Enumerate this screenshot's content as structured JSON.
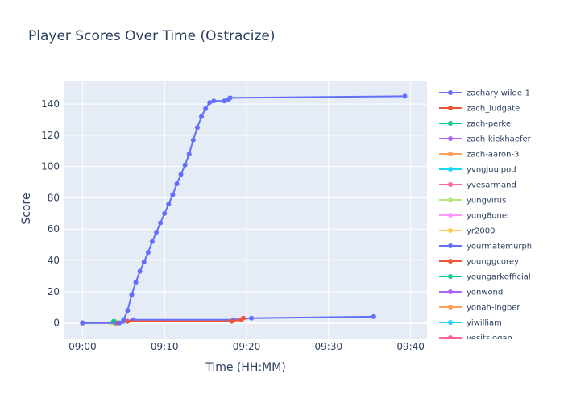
{
  "chart_data": {
    "type": "line",
    "title": "Player Scores Over Time (Ostracize)",
    "xlabel": "Time (HH:MM)",
    "ylabel": "Score",
    "x_tick_labels": [
      "09:00",
      "09:10",
      "09:20",
      "09:30",
      "09:40"
    ],
    "x_tick_minutes": [
      0,
      10,
      20,
      30,
      40
    ],
    "xlim_minutes": [
      -2.2,
      42
    ],
    "y_ticks": [
      0,
      20,
      40,
      60,
      80,
      100,
      120,
      140
    ],
    "ylim": [
      -10,
      155
    ],
    "grid": true,
    "legend_position": "right",
    "plot_background": "#e5ecf6",
    "series": [
      {
        "name": "zachary-wilde-1",
        "color": "#636efa",
        "x": [
          0,
          4.5,
          5.0,
          5.5,
          6.0,
          6.5,
          7.0,
          7.5,
          8.0,
          8.5,
          9.0,
          9.5,
          10.0,
          10.5,
          11.0,
          11.5,
          12.0,
          12.5,
          13.0,
          13.5,
          14.0,
          14.5,
          15.0,
          15.5,
          16.0,
          17.3,
          17.8,
          18.0,
          39.3
        ],
        "y": [
          0,
          0,
          2,
          8,
          18,
          26,
          33,
          39,
          45,
          52,
          58,
          64,
          70,
          76,
          82,
          89,
          95,
          101,
          108,
          117,
          125,
          132,
          137,
          141,
          142,
          142,
          143,
          144,
          145
        ]
      },
      {
        "name": "zach_ludgate",
        "color": "#ef553b",
        "x": [
          4.2,
          5.5,
          18.2,
          19.3,
          19.6
        ],
        "y": [
          0,
          1,
          1,
          2,
          3
        ]
      },
      {
        "name": "zach-perkel",
        "color": "#00cc96",
        "x": [
          3.8,
          4.0
        ],
        "y": [
          1,
          0
        ]
      },
      {
        "name": "zach-kiekhaefer",
        "color": "#ab63fa",
        "x": [
          0,
          4.0
        ],
        "y": [
          0,
          0
        ]
      },
      {
        "name": "zach-aaron-3",
        "color": "#ffa15a",
        "x": [
          0,
          4.0
        ],
        "y": [
          0,
          0
        ]
      },
      {
        "name": "yvngjuulpod",
        "color": "#19d3f3",
        "x": [
          0,
          4.0
        ],
        "y": [
          0,
          0
        ]
      },
      {
        "name": "yvesarmand",
        "color": "#ff6692",
        "x": [
          0,
          4.0
        ],
        "y": [
          0,
          0
        ]
      },
      {
        "name": "yungvirus",
        "color": "#b6e880",
        "x": [
          0,
          3.5,
          4.0
        ],
        "y": [
          0,
          0,
          1
        ]
      },
      {
        "name": "yung8oner",
        "color": "#ff97ff",
        "x": [
          0,
          4.0
        ],
        "y": [
          0,
          0
        ]
      },
      {
        "name": "yr2000",
        "color": "#fecb52",
        "x": [
          0,
          4.0
        ],
        "y": [
          0,
          0
        ]
      },
      {
        "name": "yourmatemurph",
        "color": "#636efa",
        "x": [
          4.2,
          5.0,
          6.2,
          18.4,
          20.6,
          35.5
        ],
        "y": [
          0,
          1,
          2,
          2,
          3,
          4
        ]
      },
      {
        "name": "younggcorey",
        "color": "#ef553b",
        "x": [
          0,
          4.0
        ],
        "y": [
          0,
          0
        ]
      },
      {
        "name": "youngarkofficial",
        "color": "#00cc96",
        "x": [
          0,
          4.0
        ],
        "y": [
          0,
          0
        ]
      },
      {
        "name": "yonwond",
        "color": "#ab63fa",
        "x": [
          0,
          4.0
        ],
        "y": [
          0,
          0
        ]
      },
      {
        "name": "yonah-ingber",
        "color": "#ffa15a",
        "x": [
          0,
          4.0
        ],
        "y": [
          0,
          0
        ]
      },
      {
        "name": "yiwilliam",
        "color": "#19d3f3",
        "x": [
          0,
          4.0
        ],
        "y": [
          0,
          0
        ]
      },
      {
        "name": "yesitslogan",
        "color": "#ff6692",
        "x": [
          0,
          4.0
        ],
        "y": [
          0,
          0
        ]
      }
    ]
  }
}
